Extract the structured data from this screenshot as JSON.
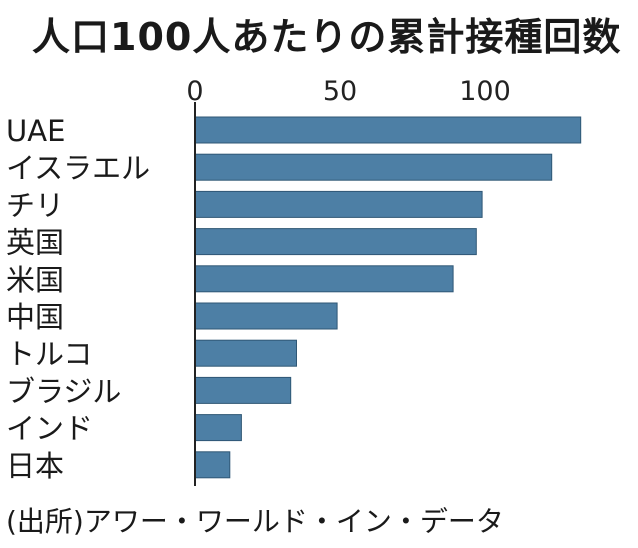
{
  "chart_data": {
    "type": "bar",
    "orientation": "horizontal",
    "title": "人口100人あたりの累計接種回数",
    "source": "(出所)アワー・ワールド・イン・データ",
    "categories": [
      "UAE",
      "イスラエル",
      "チリ",
      "英国",
      "米国",
      "中国",
      "トルコ",
      "ブラジル",
      "インド",
      "日本"
    ],
    "values": [
      133,
      123,
      99,
      97,
      89,
      49,
      35,
      33,
      16,
      12
    ],
    "xlim": [
      0,
      133
    ],
    "xticks": [
      "0",
      "50",
      "100"
    ],
    "xlabel": "",
    "ylabel": "",
    "grid": false,
    "colors": {
      "bar": "#4d7fa5",
      "bar_stroke": "#2f5775",
      "axis": "#222222"
    }
  }
}
